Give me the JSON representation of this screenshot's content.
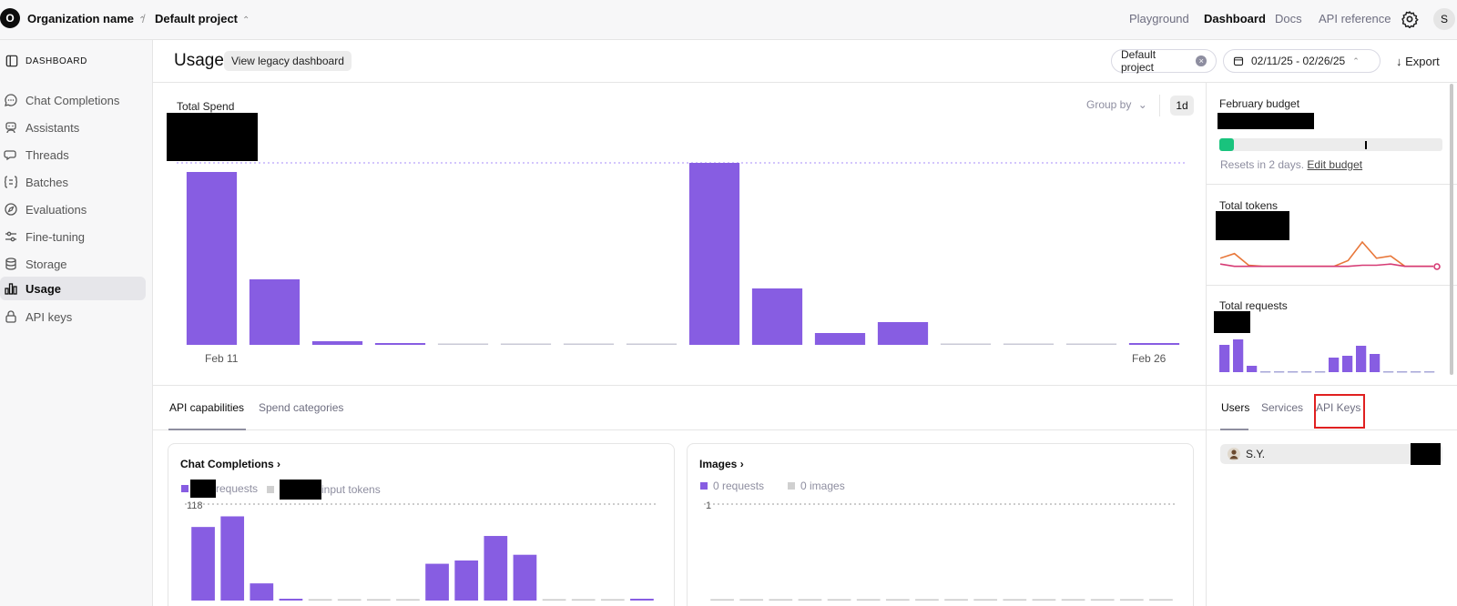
{
  "topbar": {
    "org_initial": "O",
    "org_name": "Organization name",
    "project_name": "Default project",
    "separator": "/",
    "nav": [
      "Playground",
      "Dashboard",
      "Docs",
      "API reference"
    ],
    "active_nav": "Dashboard",
    "user_initial": "S"
  },
  "sidebar": {
    "header": "DASHBOARD",
    "items": [
      {
        "label": "Chat Completions",
        "icon": "chat-icon"
      },
      {
        "label": "Assistants",
        "icon": "assistant-icon"
      },
      {
        "label": "Threads",
        "icon": "threads-icon"
      },
      {
        "label": "Batches",
        "icon": "batches-icon"
      },
      {
        "label": "Evaluations",
        "icon": "evaluations-icon"
      },
      {
        "label": "Fine-tuning",
        "icon": "fine-tuning-icon"
      },
      {
        "label": "Storage",
        "icon": "storage-icon"
      },
      {
        "label": "Usage",
        "icon": "usage-icon"
      },
      {
        "label": "API keys",
        "icon": "lock-icon"
      }
    ],
    "active": "Usage"
  },
  "header": {
    "title": "Usage",
    "legacy_button": "View legacy dashboard",
    "project_filter": "Default project",
    "date_range": "02/11/25 - 02/26/25",
    "export_label": "Export"
  },
  "spend": {
    "title": "Total Spend",
    "group_by_label": "Group by",
    "interval_label": "1d",
    "start_label": "Feb 11",
    "end_label": "Feb 26"
  },
  "tabs": {
    "left": [
      "API capabilities",
      "Spend categories"
    ],
    "left_active": "API capabilities",
    "right": [
      "Users",
      "Services",
      "API Keys"
    ],
    "right_active": "Users"
  },
  "cards": {
    "chat": {
      "title": "Chat Completions",
      "legend_requests": "requests",
      "legend_tokens": "input tokens",
      "ymax": "118"
    },
    "images": {
      "title": "Images",
      "legend_requests": "0 requests",
      "legend_images": "0 images",
      "ymax": "1"
    }
  },
  "budget": {
    "title": "February budget",
    "fill_fraction": 0.065,
    "threshold_fraction": 0.655,
    "resets_text": "Resets in 2 days.",
    "edit_link": "Edit budget"
  },
  "tokens": {
    "title": "Total tokens"
  },
  "requests": {
    "title": "Total requests"
  },
  "users_list": [
    {
      "name": "S.Y."
    }
  ],
  "colors": {
    "accent": "#875de2",
    "budget_green": "#19c37d",
    "highlight_red": "#e02020"
  },
  "chart_data": [
    {
      "type": "bar",
      "title": "Total Spend",
      "categories": [
        "Feb 11",
        "Feb 12",
        "Feb 13",
        "Feb 14",
        "Feb 15",
        "Feb 16",
        "Feb 17",
        "Feb 18",
        "Feb 19",
        "Feb 20",
        "Feb 21",
        "Feb 22",
        "Feb 23",
        "Feb 24",
        "Feb 25",
        "Feb 26"
      ],
      "x_tick_labels": [
        "Feb 11",
        "Feb 26"
      ],
      "values": [
        95,
        36,
        2,
        1,
        0.3,
        0.3,
        0.3,
        0.3,
        100,
        31,
        6.5,
        12.5,
        0.3,
        0.3,
        0.3,
        1
      ],
      "ylim": [
        0,
        100
      ],
      "reference_line": 100,
      "grid": false
    },
    {
      "type": "bar",
      "title": "Chat Completions",
      "series": [
        {
          "name": "requests",
          "values": [
            90,
            103,
            21,
            1,
            0,
            0,
            0,
            0,
            45,
            49,
            79,
            56,
            0,
            0,
            0,
            1
          ]
        }
      ],
      "ylim": [
        0,
        118
      ],
      "reference_line": 118
    },
    {
      "type": "bar",
      "title": "Images",
      "series": [
        {
          "name": "requests",
          "values": [
            0,
            0,
            0,
            0,
            0,
            0,
            0,
            0,
            0,
            0,
            0,
            0,
            0,
            0,
            0,
            0
          ]
        }
      ],
      "ylim": [
        0,
        1
      ],
      "reference_line": 1
    },
    {
      "type": "line",
      "title": "Total tokens",
      "series": [
        {
          "values": [
            8,
            12,
            2,
            1,
            1,
            1,
            1,
            1,
            1,
            6,
            22,
            8,
            10,
            1,
            1,
            1
          ]
        },
        {
          "values": [
            3,
            1,
            1,
            1,
            1,
            1,
            1,
            1,
            1,
            1,
            2,
            2,
            3,
            1,
            1,
            1
          ]
        }
      ]
    },
    {
      "type": "bar",
      "title": "Total requests",
      "values": [
        30,
        36,
        7,
        1,
        1,
        1,
        1,
        1,
        16,
        18,
        29,
        20,
        1,
        1,
        1,
        1
      ],
      "ylim": [
        0,
        36
      ]
    }
  ]
}
